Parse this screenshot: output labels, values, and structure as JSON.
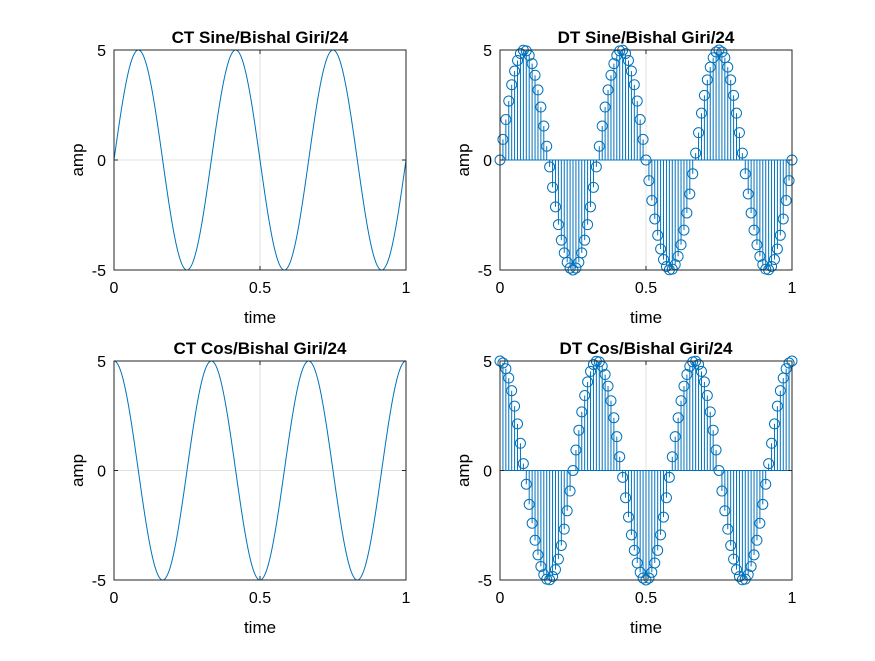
{
  "figure": {
    "background": "#ffffff",
    "line_color": "#0072BD"
  },
  "chart_data": [
    {
      "type": "line",
      "title": "CT Sine/Bishal Giri/24",
      "xlabel": "time",
      "ylabel": "amp",
      "function": "5*sin(2*pi*3*t)",
      "amplitude": 5,
      "frequency_hz": 3,
      "x_range": [
        0,
        1
      ],
      "samples": 1001,
      "xlim": [
        0,
        1
      ],
      "ylim": [
        -5,
        5
      ],
      "xticks": [
        0,
        0.5,
        1
      ],
      "xtick_labels": [
        "0",
        "0.5",
        "1"
      ],
      "yticks": [
        -5,
        0,
        5
      ],
      "ytick_labels": [
        "-5",
        "0",
        "5"
      ],
      "grid": true
    },
    {
      "type": "stem",
      "title": "DT Sine/Bishal Giri/24",
      "xlabel": "time",
      "ylabel": "amp",
      "function": "5*sin(2*pi*3*n/100)",
      "amplitude": 5,
      "frequency_hz": 3,
      "x_range": [
        0,
        1
      ],
      "samples": 101,
      "marker": "o",
      "xlim": [
        0,
        1
      ],
      "ylim": [
        -5,
        5
      ],
      "xticks": [
        0,
        0.5,
        1
      ],
      "xtick_labels": [
        "0",
        "0.5",
        "1"
      ],
      "yticks": [
        -5,
        0,
        5
      ],
      "ytick_labels": [
        "-5",
        "0",
        "5"
      ],
      "grid": true
    },
    {
      "type": "line",
      "title": "CT Cos/Bishal Giri/24",
      "xlabel": "time",
      "ylabel": "amp",
      "function": "5*cos(2*pi*3*t)",
      "amplitude": 5,
      "frequency_hz": 3,
      "x_range": [
        0,
        1
      ],
      "samples": 1001,
      "xlim": [
        0,
        1
      ],
      "ylim": [
        -5,
        5
      ],
      "xticks": [
        0,
        0.5,
        1
      ],
      "xtick_labels": [
        "0",
        "0.5",
        "1"
      ],
      "yticks": [
        -5,
        0,
        5
      ],
      "ytick_labels": [
        "-5",
        "0",
        "5"
      ],
      "grid": true
    },
    {
      "type": "stem",
      "title": "DT Cos/Bishal Giri/24",
      "xlabel": "time",
      "ylabel": "amp",
      "function": "5*cos(2*pi*3*n/100)",
      "amplitude": 5,
      "frequency_hz": 3,
      "x_range": [
        0,
        1
      ],
      "samples": 101,
      "marker": "o",
      "xlim": [
        0,
        1
      ],
      "ylim": [
        -5,
        5
      ],
      "xticks": [
        0,
        0.5,
        1
      ],
      "xtick_labels": [
        "0",
        "0.5",
        "1"
      ],
      "yticks": [
        -5,
        0,
        5
      ],
      "ytick_labels": [
        "-5",
        "0",
        "5"
      ],
      "grid": true
    }
  ]
}
